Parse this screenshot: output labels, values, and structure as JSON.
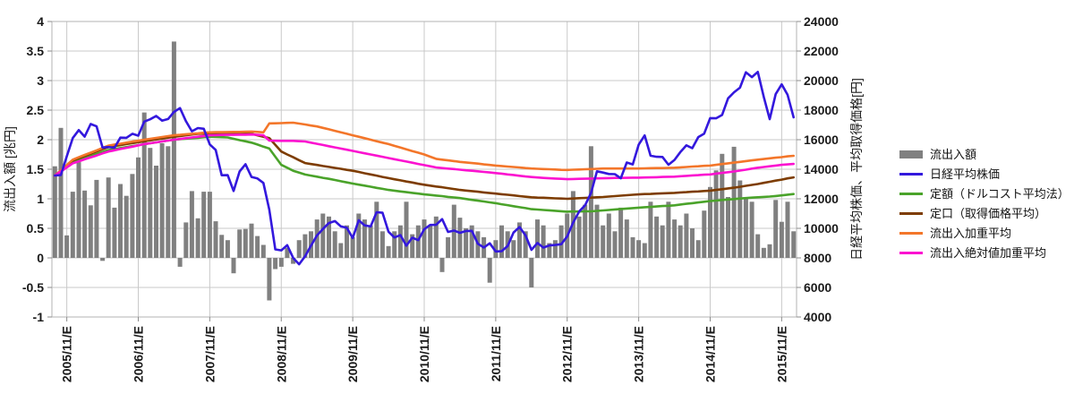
{
  "legend": {
    "items": [
      {
        "label": "流出入額",
        "color": "#808080",
        "marker": "bar"
      },
      {
        "label": "日経平均株価",
        "color": "#3318dd",
        "marker": "line"
      },
      {
        "label": "定額（ドルコスト平均法）",
        "color": "#4aa32a",
        "marker": "line"
      },
      {
        "label": "定口（取得価格平均）",
        "color": "#7d3c00",
        "marker": "line"
      },
      {
        "label": "流出入加重平均",
        "color": "#f3762a",
        "marker": "line"
      },
      {
        "label": "流出入絶対値加重平均",
        "color": "#fb12d0",
        "marker": "line"
      }
    ]
  },
  "chart_data": {
    "type": "bar",
    "subtype": "combo-bar-line",
    "n_points": 125,
    "x_start": "2005/09",
    "x_end": "2016/01",
    "x_interval": "month",
    "grid": true,
    "grid_color": "#c9c9c9",
    "frame_color": "#b3b3b3",
    "tick_color": "#8c8c8c",
    "label_color": "#1a1a1a",
    "x_tick_labels": [
      "2005/11/E",
      "2006/11/E",
      "2007/11/E",
      "2008/11/E",
      "2009/11/E",
      "2010/11/E",
      "2011/11/E",
      "2012/11/E",
      "2013/11/E",
      "2014/11/E",
      "2015/11/E"
    ],
    "x_tick_indices": [
      2,
      14,
      26,
      38,
      50,
      62,
      74,
      86,
      98,
      110,
      122
    ],
    "left_axis": {
      "title": "流出入額 [兆円]",
      "min": -1,
      "max": 4,
      "tick_values": [
        4,
        3.5,
        3,
        2.5,
        2,
        1.5,
        1,
        0.5,
        0,
        -0.5,
        -1
      ],
      "tick_labels": [
        "4",
        "3.5",
        "3",
        "2.5",
        "2",
        "1.5",
        "1",
        "0.5",
        "0",
        "-0.5",
        "-1"
      ]
    },
    "right_axis": {
      "title": "日経平均株価、平均取得価格[円]",
      "min": 4000,
      "max": 24000,
      "tick_values": [
        24000,
        22000,
        20000,
        18000,
        16000,
        14000,
        12000,
        10000,
        8000,
        6000,
        4000
      ],
      "tick_labels": [
        "24000",
        "22000",
        "20000",
        "18000",
        "16000",
        "14000",
        "12000",
        "10000",
        "8000",
        "6000",
        "4000"
      ]
    },
    "bars": {
      "name": "流出入額",
      "axis": "left",
      "color": "#808080",
      "values": [
        1.55,
        2.2,
        0.38,
        1.12,
        1.62,
        1.14,
        0.89,
        1.32,
        -0.05,
        1.36,
        0.85,
        1.25,
        1.05,
        1.42,
        1.7,
        2.46,
        1.86,
        1.56,
        1.94,
        1.89,
        3.66,
        -0.15,
        0.6,
        1.13,
        0.67,
        1.12,
        1.12,
        0.62,
        0.39,
        0.3,
        -0.26,
        0.48,
        0.49,
        0.58,
        0.37,
        0.22,
        -0.72,
        -0.19,
        -0.15,
        0.17,
        -0.1,
        0.3,
        0.4,
        0.45,
        0.65,
        0.75,
        0.7,
        0.45,
        0.25,
        0.55,
        0.35,
        0.75,
        0.65,
        0.55,
        0.95,
        0.45,
        0.2,
        0.45,
        0.55,
        0.95,
        0.4,
        0.55,
        0.65,
        0.55,
        0.7,
        -0.24,
        0.35,
        0.9,
        0.68,
        0.5,
        0.55,
        0.45,
        0.35,
        -0.42,
        0.3,
        0.55,
        0.45,
        0.3,
        0.6,
        0.45,
        -0.5,
        0.65,
        0.55,
        0.25,
        0.3,
        0.55,
        0.75,
        1.13,
        0.7,
        0.9,
        1.89,
        0.9,
        0.55,
        0.75,
        0.45,
        0.85,
        0.65,
        0.35,
        0.3,
        0.25,
        0.95,
        0.7,
        0.55,
        0.95,
        0.65,
        0.55,
        0.75,
        0.5,
        0.3,
        0.8,
        1.2,
        1.48,
        1.76,
        1.03,
        1.88,
        1.31,
        1.0,
        0.95,
        0.4,
        0.17,
        0.23,
        0.98,
        0.61,
        0.95,
        0.45
      ]
    },
    "lines": [
      {
        "name": "定額（ドルコスト平均法）",
        "axis": "right",
        "color": "#4aa32a",
        "values": [
          13570,
          13880,
          14190,
          14500,
          14630,
          14770,
          14900,
          15030,
          15170,
          15300,
          15370,
          15430,
          15500,
          15570,
          15630,
          15700,
          15760,
          15820,
          15880,
          15940,
          16000,
          16030,
          16070,
          16100,
          16130,
          16170,
          16200,
          16180,
          16170,
          16150,
          16060,
          15970,
          15890,
          15800,
          15670,
          15530,
          15400,
          14850,
          14300,
          14100,
          13900,
          13770,
          13640,
          13570,
          13500,
          13420,
          13350,
          13270,
          13190,
          13110,
          13030,
          12960,
          12890,
          12820,
          12740,
          12670,
          12600,
          12550,
          12500,
          12450,
          12400,
          12350,
          12300,
          12260,
          12220,
          12180,
          12130,
          12090,
          12050,
          11990,
          11930,
          11870,
          11820,
          11760,
          11700,
          11630,
          11570,
          11500,
          11430,
          11370,
          11300,
          11270,
          11240,
          11220,
          11190,
          11160,
          11130,
          11140,
          11140,
          11150,
          11150,
          11180,
          11210,
          11240,
          11280,
          11310,
          11340,
          11370,
          11400,
          11430,
          11450,
          11480,
          11510,
          11530,
          11560,
          11610,
          11660,
          11700,
          11750,
          11800,
          11850,
          11880,
          11920,
          11950,
          11980,
          12020,
          12050,
          12080,
          12100,
          12130,
          12150,
          12190,
          12230,
          12280,
          12320
        ]
      },
      {
        "name": "定口（取得価格平均）",
        "axis": "right",
        "color": "#7d3c00",
        "values": [
          13570,
          13910,
          14260,
          14600,
          14750,
          14900,
          15050,
          15200,
          15350,
          15500,
          15570,
          15630,
          15700,
          15770,
          15830,
          15900,
          15960,
          16020,
          16080,
          16140,
          16200,
          16250,
          16300,
          16350,
          16400,
          16410,
          16420,
          16430,
          16440,
          16440,
          16450,
          16430,
          16420,
          16400,
          16300,
          16200,
          16100,
          15650,
          15200,
          15000,
          14810,
          14610,
          14420,
          14350,
          14290,
          14220,
          14160,
          14090,
          14030,
          13960,
          13900,
          13820,
          13730,
          13650,
          13570,
          13480,
          13400,
          13320,
          13250,
          13170,
          13100,
          13020,
          12950,
          12890,
          12830,
          12780,
          12720,
          12660,
          12600,
          12560,
          12520,
          12480,
          12430,
          12390,
          12350,
          12310,
          12270,
          12230,
          12180,
          12140,
          12100,
          12080,
          12070,
          12050,
          12030,
          12020,
          12000,
          12020,
          12040,
          12060,
          12080,
          12100,
          12120,
          12150,
          12180,
          12210,
          12240,
          12270,
          12300,
          12320,
          12330,
          12350,
          12370,
          12380,
          12400,
          12430,
          12450,
          12480,
          12500,
          12530,
          12550,
          12600,
          12650,
          12700,
          12750,
          12810,
          12880,
          12940,
          13000,
          13080,
          13150,
          13230,
          13300,
          13380,
          13450
        ]
      },
      {
        "name": "流出入加重平均",
        "axis": "right",
        "color": "#f3762a",
        "values": [
          13570,
          13930,
          14290,
          14650,
          14810,
          14970,
          15120,
          15280,
          15440,
          15600,
          15670,
          15730,
          15800,
          15870,
          15930,
          16000,
          16060,
          16120,
          16180,
          16240,
          16300,
          16330,
          16370,
          16400,
          16430,
          16470,
          16500,
          16510,
          16510,
          16520,
          16530,
          16530,
          16540,
          16550,
          16530,
          16500,
          17100,
          17110,
          17120,
          17140,
          17150,
          17090,
          17030,
          16960,
          16900,
          16800,
          16700,
          16600,
          16500,
          16400,
          16300,
          16200,
          16100,
          16000,
          15900,
          15800,
          15700,
          15580,
          15470,
          15350,
          15230,
          15120,
          15000,
          14850,
          14700,
          14650,
          14600,
          14550,
          14500,
          14460,
          14420,
          14380,
          14330,
          14290,
          14250,
          14220,
          14180,
          14150,
          14120,
          14080,
          14050,
          14030,
          14010,
          14000,
          13980,
          13960,
          13950,
          13970,
          13980,
          14000,
          14010,
          14030,
          14050,
          14050,
          14050,
          14050,
          14050,
          14050,
          14050,
          14060,
          14070,
          14080,
          14080,
          14090,
          14100,
          14130,
          14150,
          14180,
          14200,
          14230,
          14250,
          14300,
          14350,
          14400,
          14450,
          14500,
          14550,
          14600,
          14650,
          14690,
          14740,
          14780,
          14820,
          14870,
          14910
        ]
      },
      {
        "name": "流出入絶対値加重平均",
        "axis": "right",
        "color": "#fb12d0",
        "values": [
          13570,
          13850,
          14120,
          14400,
          14530,
          14670,
          14800,
          14930,
          15070,
          15200,
          15280,
          15370,
          15450,
          15530,
          15620,
          15700,
          15760,
          15820,
          15880,
          15940,
          16000,
          16050,
          16100,
          16150,
          16200,
          16250,
          16300,
          16310,
          16320,
          16330,
          16330,
          16340,
          16340,
          16350,
          16330,
          16300,
          15940,
          15930,
          15920,
          15920,
          15920,
          15900,
          15880,
          15800,
          15720,
          15640,
          15560,
          15480,
          15400,
          15320,
          15240,
          15160,
          15080,
          15000,
          14920,
          14840,
          14760,
          14680,
          14600,
          14520,
          14440,
          14360,
          14280,
          14200,
          14120,
          14080,
          14040,
          14010,
          13970,
          13930,
          13900,
          13860,
          13820,
          13780,
          13740,
          13700,
          13650,
          13610,
          13560,
          13510,
          13470,
          13440,
          13410,
          13390,
          13370,
          13350,
          13330,
          13340,
          13350,
          13360,
          13370,
          13380,
          13390,
          13400,
          13410,
          13410,
          13420,
          13430,
          13430,
          13440,
          13450,
          13460,
          13480,
          13490,
          13500,
          13530,
          13550,
          13580,
          13600,
          13630,
          13650,
          13700,
          13750,
          13800,
          13850,
          13910,
          13970,
          14040,
          14100,
          14150,
          14200,
          14250,
          14300,
          14330,
          14360
        ]
      },
      {
        "name": "日経平均株価",
        "axis": "right",
        "color": "#3318dd",
        "values": [
          13574,
          13606,
          14872,
          16111,
          16649,
          16205,
          17060,
          16906,
          15467,
          15505,
          15457,
          16141,
          16128,
          16399,
          16274,
          17226,
          17383,
          17604,
          17288,
          17400,
          17876,
          18138,
          17249,
          16569,
          16786,
          16738,
          15681,
          15308,
          13592,
          13603,
          12526,
          13850,
          14339,
          13481,
          13377,
          13073,
          11260,
          8577,
          8512,
          8860,
          7994,
          7568,
          8110,
          8828,
          9523,
          9958,
          10357,
          10493,
          10133,
          10035,
          9346,
          10546,
          10198,
          10126,
          11090,
          11057,
          9769,
          9383,
          9537,
          8824,
          9369,
          9202,
          9937,
          10229,
          10238,
          10624,
          9755,
          9850,
          9694,
          9816,
          9833,
          8955,
          8700,
          8988,
          8435,
          8455,
          8803,
          9723,
          10084,
          9521,
          8543,
          9007,
          8695,
          8840,
          8870,
          8928,
          9446,
          10395,
          11139,
          11559,
          12398,
          13861,
          13775,
          13677,
          13668,
          13389,
          14456,
          14328,
          15662,
          16291,
          14915,
          14841,
          14828,
          14304,
          14632,
          15162,
          15621,
          15425,
          16174,
          16414,
          17460,
          17451,
          17674,
          18798,
          19207,
          19520,
          20563,
          20236,
          20585,
          18890,
          17388,
          19083,
          19747,
          19034,
          17518
        ]
      }
    ]
  }
}
